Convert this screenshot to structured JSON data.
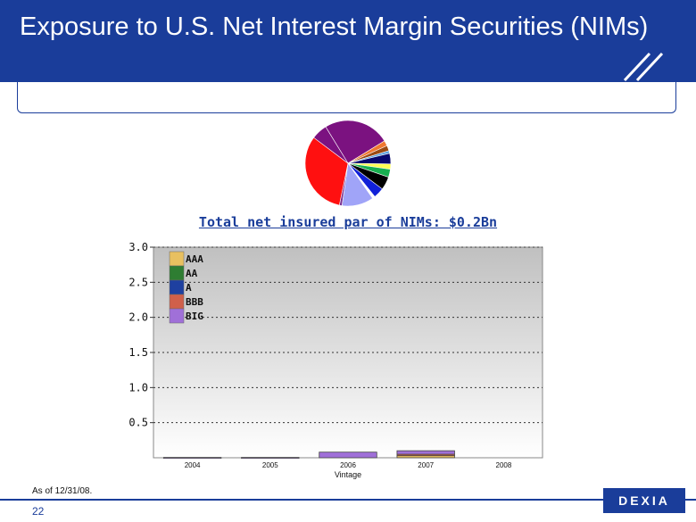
{
  "slide": {
    "title": "Exposure to U.S. Net Interest Margin Securities (NIMs)",
    "subtitle": "Total net insured par of NIMs: $0.2Bn",
    "note": "As of 12/31/08.",
    "page_number": "22",
    "logo": "DEXIA",
    "header_color": "#1a3d9a"
  },
  "chart_data": [
    {
      "type": "pie",
      "title": "",
      "slices": [
        {
          "value": 25,
          "color": "#7b1280"
        },
        {
          "value": 2,
          "color": "#f07830"
        },
        {
          "value": 2,
          "color": "#9b4a12"
        },
        {
          "value": 1,
          "color": "#5aa0e0"
        },
        {
          "value": 4,
          "color": "#08086e"
        },
        {
          "value": 2,
          "color": "#ffff55"
        },
        {
          "value": 3,
          "color": "#18b050"
        },
        {
          "value": 5,
          "color": "#000000"
        },
        {
          "value": 4,
          "color": "#1020d8"
        },
        {
          "value": 1,
          "color": "#ffffff"
        },
        {
          "value": 12,
          "color": "#a0a4f8"
        },
        {
          "value": 1,
          "color": "#7b3090"
        },
        {
          "value": 32,
          "color": "#ff1010"
        },
        {
          "value": 6,
          "color": "#7b1280"
        }
      ]
    },
    {
      "type": "bar",
      "stacked": true,
      "categories": [
        "2004",
        "2005",
        "2006",
        "2007",
        "2008"
      ],
      "xlabel": "Vintage",
      "ylabel": "",
      "ylim": [
        0,
        3.0
      ],
      "yticks": [
        "0.5",
        "1.0",
        "1.5",
        "2.0",
        "2.5",
        "3.0"
      ],
      "grid": true,
      "legend_position": "top-left",
      "series": [
        {
          "name": "AAA",
          "color": "#e8c060",
          "values": [
            0,
            0,
            0,
            0.03,
            0
          ]
        },
        {
          "name": "AA",
          "color": "#2e7d32",
          "values": [
            0,
            0,
            0,
            0,
            0
          ]
        },
        {
          "name": "A",
          "color": "#1e40a0",
          "values": [
            0,
            0,
            0,
            0,
            0
          ]
        },
        {
          "name": "BBB",
          "color": "#d0604a",
          "values": [
            0,
            0,
            0,
            0.02,
            0
          ]
        },
        {
          "name": "BIG",
          "color": "#a070d8",
          "values": [
            0.005,
            0.005,
            0.08,
            0.05,
            0
          ]
        }
      ]
    }
  ]
}
